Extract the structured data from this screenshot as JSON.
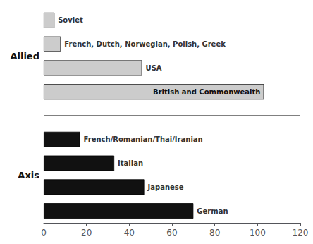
{
  "chart_data": {
    "type": "bar",
    "orientation": "horizontal",
    "series": [
      {
        "name": "Allied",
        "color": "#cccccc",
        "categories": [
          "Soviet",
          "French, Dutch, Norwegian, Polish, Greek",
          "USA",
          "British and Commonwealth"
        ],
        "values": [
          5,
          8,
          46,
          103
        ]
      },
      {
        "name": "Axis",
        "color": "#111111",
        "categories": [
          "French/Romanian/Thai/Iranian",
          "Italian",
          "Japanese",
          "German"
        ],
        "values": [
          17,
          33,
          47,
          70
        ]
      }
    ],
    "xlim": [
      0,
      120
    ],
    "xticks": [
      0,
      20,
      40,
      60,
      80,
      100,
      120
    ],
    "tick_labels": "x",
    "grid": false
  }
}
